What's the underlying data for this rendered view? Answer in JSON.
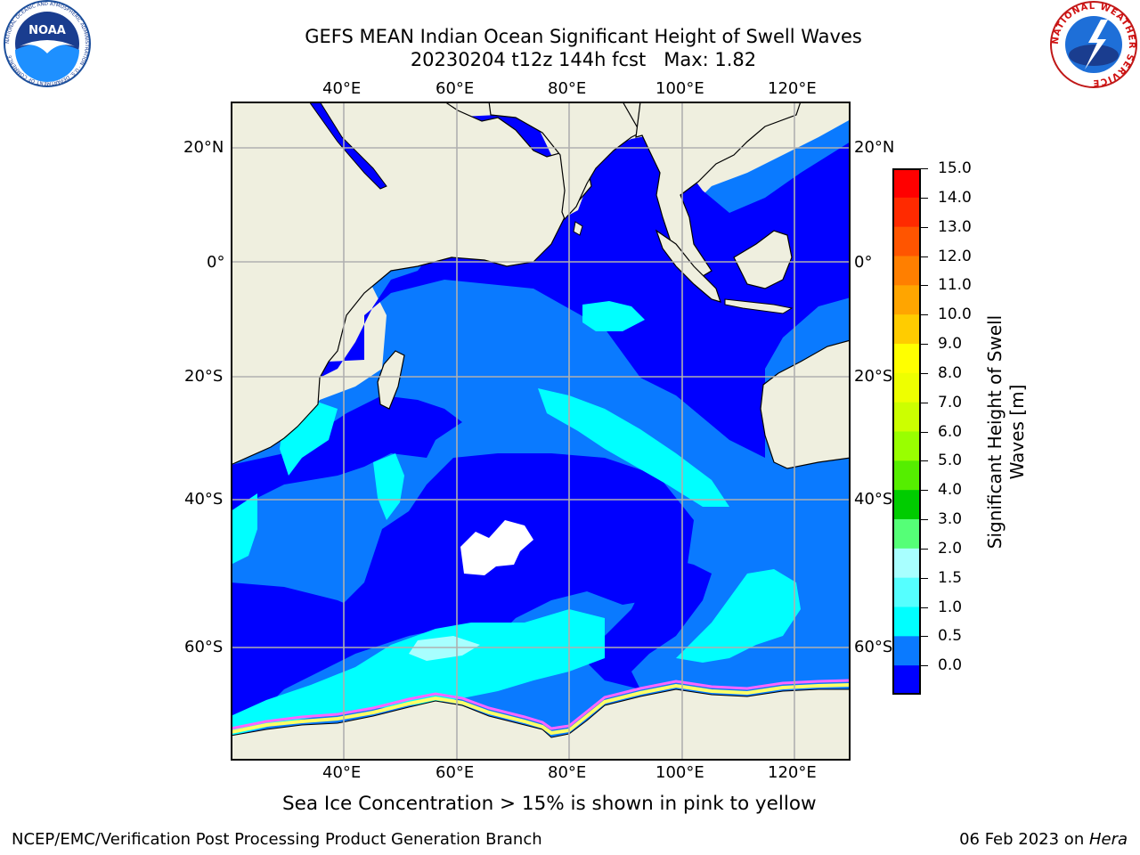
{
  "title": {
    "line1": "GEFS MEAN Indian Ocean Significant Height of Swell Waves",
    "line2": "20230204 t12z 144h fcst   Max: 1.82"
  },
  "map": {
    "lon_ticks_top": [
      "40°E",
      "60°E",
      "80°E",
      "100°E",
      "120°E"
    ],
    "lon_ticks_bottom": [
      "40°E",
      "60°E",
      "80°E",
      "100°E",
      "120°E"
    ],
    "lat_ticks_left": [
      "20°N",
      "0°",
      "20°S",
      "40°S",
      "60°S"
    ],
    "lat_ticks_right": [
      "20°N",
      "0°",
      "20°S",
      "40°S",
      "60°S"
    ],
    "colors": {
      "land": "#efefdf",
      "swell_0_0.5": "#0000ff",
      "swell_0.5_1.0": "#0a7aff",
      "swell_1.0_1.5": "#00ffff",
      "swell_1.5_2.0": "#a8ffff",
      "ice_pink": "#ff66ff",
      "ice_yellow": "#ffff66",
      "grid": "#b0b0b0"
    }
  },
  "colorbar": {
    "label_line1": "Significant Height of Swell",
    "label_line2": "Waves [m]",
    "ticks": [
      "15.0",
      "14.0",
      "13.0",
      "12.0",
      "11.0",
      "10.0",
      "9.0",
      "8.0",
      "7.0",
      "6.0",
      "5.0",
      "4.0",
      "3.0",
      "2.0",
      "1.5",
      "1.0",
      "0.5",
      "0.0"
    ],
    "colors_top_to_bottom": [
      "#ff0000",
      "#ff2a00",
      "#ff5500",
      "#ff7f00",
      "#ffa500",
      "#ffcc00",
      "#ffff00",
      "#eeff00",
      "#ccff00",
      "#99ff00",
      "#55ee00",
      "#00cc00",
      "#55ff77",
      "#a8ffff",
      "#55ffff",
      "#00ffff",
      "#0a7aff",
      "#0000ff"
    ]
  },
  "caption": "Sea Ice Concentration > 15% is shown in pink to yellow",
  "footer": {
    "left": "NCEP/EMC/Verification Post Processing Product Generation Branch",
    "right_prefix": "06 Feb 2023 on ",
    "right_host": "Hera"
  },
  "logos": {
    "noaa_text": "NOAA",
    "noaa_ring_text": "NATIONAL OCEANIC AND ATMOSPHERIC ADMINISTRATION · U.S. DEPARTMENT OF COMMERCE",
    "nws_ring_text": "NATIONAL WEATHER SERVICE"
  }
}
